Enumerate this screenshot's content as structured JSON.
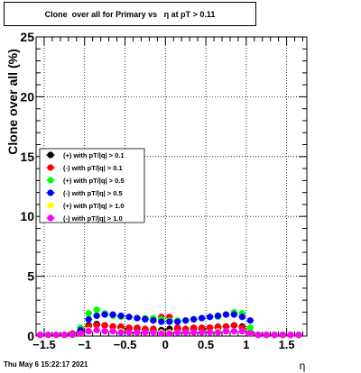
{
  "header": {
    "title": "Clone  over all for Primary vs   η at pT > 0.11"
  },
  "footer": {
    "datetime": "Thu May  6 15:22:17 2021"
  },
  "chart_data": {
    "type": "scatter",
    "xlabel": "η",
    "ylabel": "Clone  over all (%)",
    "xlim": [
      -1.6,
      1.75
    ],
    "ylim": [
      0,
      25
    ],
    "x_ticks": [
      -1.5,
      -1,
      -0.5,
      0,
      0.5,
      1,
      1.5
    ],
    "x_tick_labels": [
      "−1.5",
      "−1",
      "−0.5",
      "0",
      "0.5",
      "1",
      "1.5"
    ],
    "y_ticks": [
      0,
      5,
      10,
      15,
      20,
      25
    ],
    "y_tick_labels": [
      "0",
      "5",
      "10",
      "15",
      "20",
      "25"
    ],
    "grid": true,
    "legend_position": "middle-left",
    "series": [
      {
        "name": "(+) with pT/|q| > 0.1",
        "color": "#000000",
        "x": [
          -1.55,
          -1.45,
          -1.35,
          -1.25,
          -1.15,
          -1.05,
          -0.95,
          -0.85,
          -0.75,
          -0.65,
          -0.55,
          -0.45,
          -0.35,
          -0.25,
          -0.15,
          -0.05,
          0.05,
          0.15,
          0.25,
          0.35,
          0.45,
          0.55,
          0.65,
          0.75,
          0.85,
          0.95,
          1.05,
          1.15,
          1.25,
          1.35,
          1.45,
          1.55,
          1.65
        ],
        "y": [
          0.1,
          0.1,
          0.1,
          0.1,
          0.2,
          0.4,
          0.9,
          1.0,
          0.9,
          0.8,
          0.7,
          0.6,
          0.6,
          0.5,
          0.5,
          0.5,
          0.6,
          0.6,
          0.5,
          0.6,
          0.6,
          0.7,
          0.7,
          0.8,
          0.9,
          0.8,
          0.3,
          0.1,
          0.1,
          0.1,
          0.1,
          0.1,
          0.1
        ]
      },
      {
        "name": "(-) with pT/|q| > 0.1",
        "color": "#ff0000",
        "x": [
          -1.55,
          -1.45,
          -1.35,
          -1.25,
          -1.15,
          -1.05,
          -0.95,
          -0.85,
          -0.75,
          -0.65,
          -0.55,
          -0.45,
          -0.35,
          -0.25,
          -0.15,
          -0.05,
          0.05,
          0.15,
          0.25,
          0.35,
          0.45,
          0.55,
          0.65,
          0.75,
          0.85,
          0.95,
          1.05,
          1.15,
          1.25,
          1.35,
          1.45,
          1.55,
          1.65
        ],
        "y": [
          0.1,
          0.1,
          0.1,
          0.1,
          0.2,
          0.4,
          0.8,
          0.9,
          0.9,
          0.8,
          0.8,
          0.7,
          0.7,
          0.6,
          0.6,
          1.6,
          1.6,
          0.7,
          0.6,
          0.7,
          0.7,
          0.7,
          0.8,
          0.8,
          0.9,
          0.7,
          0.3,
          0.1,
          0.1,
          0.1,
          0.1,
          0.1,
          0.1
        ]
      },
      {
        "name": "(+) with pT/|q| > 0.5",
        "color": "#00ff00",
        "x": [
          -1.05,
          -0.95,
          -0.85,
          -0.75,
          -0.65,
          -0.55,
          -0.45,
          -0.35,
          -0.25,
          -0.15,
          -0.05,
          0.05,
          0.15,
          0.25,
          0.35,
          0.45,
          0.55,
          0.65,
          0.75,
          0.85,
          0.95,
          1.05
        ],
        "y": [
          0.7,
          1.9,
          2.2,
          1.9,
          1.7,
          1.6,
          1.6,
          1.5,
          1.5,
          1.5,
          1.4,
          1.3,
          1.3,
          1.3,
          1.4,
          1.5,
          1.6,
          1.6,
          1.8,
          2.0,
          1.9,
          0.7
        ]
      },
      {
        "name": "(-) with pT/|q| > 0.5",
        "color": "#0000ff",
        "x": [
          -1.05,
          -0.95,
          -0.85,
          -0.75,
          -0.65,
          -0.55,
          -0.45,
          -0.35,
          -0.25,
          -0.15,
          -0.05,
          0.05,
          0.15,
          0.25,
          0.35,
          0.45,
          0.55,
          0.65,
          0.75,
          0.85,
          0.95,
          1.05,
          1.15,
          1.25,
          1.35,
          1.45,
          1.55,
          1.65
        ],
        "y": [
          0.5,
          1.4,
          1.7,
          1.8,
          1.8,
          1.7,
          1.6,
          1.5,
          1.4,
          1.3,
          1.2,
          1.2,
          1.2,
          1.3,
          1.4,
          1.5,
          1.6,
          1.7,
          1.8,
          1.8,
          1.6,
          1.3,
          0.1,
          0.1,
          0.1,
          0.1,
          0.1,
          0.1
        ]
      },
      {
        "name": "(+) with pT/|q| > 1.0",
        "color": "#ffff00",
        "x": [
          -1.55,
          -1.45,
          -1.35,
          -1.25,
          -1.15,
          -1.05,
          -0.95,
          -0.85,
          -0.75,
          -0.65,
          -0.55,
          -0.45,
          -0.35,
          -0.25,
          -0.15,
          -0.05,
          0.05,
          0.15,
          0.25,
          0.35,
          0.45,
          0.55,
          0.65,
          0.75,
          0.85,
          0.95,
          1.05,
          1.15,
          1.25,
          1.35,
          1.45,
          1.55,
          1.65
        ],
        "y": [
          0.1,
          0.1,
          0.1,
          0.1,
          0.1,
          0.2,
          0.5,
          0.5,
          0.4,
          0.4,
          0.4,
          0.3,
          0.3,
          0.3,
          0.3,
          0.3,
          0.3,
          0.3,
          0.3,
          0.3,
          0.3,
          0.3,
          0.4,
          0.4,
          0.4,
          0.4,
          0.2,
          0.1,
          0.1,
          0.1,
          0.1,
          0.1,
          0.1
        ]
      },
      {
        "name": "(-) with pT/|q| > 1.0",
        "color": "#ff00ff",
        "x": [
          -1.55,
          -1.45,
          -1.35,
          -1.25,
          -1.15,
          -1.05,
          -0.95,
          -0.85,
          -0.75,
          -0.65,
          -0.55,
          -0.45,
          -0.35,
          -0.25,
          -0.15,
          -0.05,
          0.05,
          0.15,
          0.25,
          0.35,
          0.45,
          0.55,
          0.65,
          0.75,
          0.85,
          0.95,
          1.05,
          1.15,
          1.25,
          1.35,
          1.45,
          1.55,
          1.65
        ],
        "y": [
          0.1,
          0.1,
          0.1,
          0.1,
          0.1,
          0.2,
          0.4,
          0.5,
          0.4,
          0.4,
          0.3,
          0.3,
          0.3,
          0.3,
          0.3,
          0.2,
          0.2,
          0.3,
          0.3,
          0.3,
          0.3,
          0.3,
          0.3,
          0.4,
          0.4,
          0.4,
          0.2,
          0.1,
          0.1,
          0.1,
          0.1,
          0.1,
          0.1
        ]
      }
    ]
  }
}
